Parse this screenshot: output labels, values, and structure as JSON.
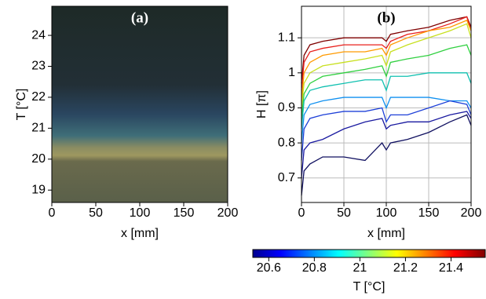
{
  "chart_data": [
    {
      "type": "image",
      "panel_label": "(a)",
      "xlabel": "x [mm]",
      "ylabel": "T [°C]",
      "xlim": [
        0,
        200
      ],
      "xticks": [
        0,
        50,
        100,
        150,
        200
      ],
      "ylim": [
        18.6,
        24.94
      ],
      "yticks": [
        19,
        20,
        21,
        22,
        23,
        24
      ]
    },
    {
      "type": "line",
      "panel_label": "(b)",
      "xlabel": "x [mm]",
      "ylabel": "H [π]",
      "xlim": [
        0,
        200
      ],
      "xticks": [
        0,
        50,
        100,
        150,
        200
      ],
      "ylim": [
        0.63,
        1.19
      ],
      "yticks": [
        0.7,
        0.8,
        0.9,
        1.0,
        1.1
      ],
      "grid": true,
      "x": [
        0,
        3,
        10,
        25,
        50,
        75,
        95,
        100,
        105,
        125,
        150,
        175,
        195,
        200
      ],
      "series": [
        {
          "color": "#7f0000",
          "values": [
            0.97,
            1.05,
            1.08,
            1.09,
            1.1,
            1.1,
            1.1,
            1.09,
            1.11,
            1.12,
            1.13,
            1.15,
            1.16,
            1.13
          ]
        },
        {
          "color": "#e8201c",
          "values": [
            0.95,
            1.03,
            1.06,
            1.07,
            1.08,
            1.08,
            1.08,
            1.07,
            1.09,
            1.11,
            1.12,
            1.14,
            1.16,
            1.12
          ]
        },
        {
          "color": "#ff9a00",
          "values": [
            0.92,
            1.0,
            1.03,
            1.05,
            1.06,
            1.06,
            1.07,
            1.05,
            1.08,
            1.1,
            1.12,
            1.13,
            1.15,
            1.12
          ]
        },
        {
          "color": "#c8e020",
          "values": [
            0.9,
            0.97,
            1.0,
            1.02,
            1.03,
            1.04,
            1.05,
            1.02,
            1.06,
            1.08,
            1.1,
            1.12,
            1.14,
            1.1
          ]
        },
        {
          "color": "#30d040",
          "values": [
            0.87,
            0.94,
            0.97,
            0.99,
            1.0,
            1.01,
            1.02,
            0.99,
            1.03,
            1.04,
            1.05,
            1.07,
            1.08,
            1.05
          ]
        },
        {
          "color": "#10c0b0",
          "values": [
            0.84,
            0.92,
            0.95,
            0.96,
            0.97,
            0.98,
            0.98,
            0.95,
            0.99,
            0.99,
            1.0,
            1.0,
            1.0,
            0.97
          ]
        },
        {
          "color": "#1090f0",
          "values": [
            0.8,
            0.88,
            0.91,
            0.92,
            0.93,
            0.93,
            0.93,
            0.9,
            0.93,
            0.93,
            0.93,
            0.92,
            0.92,
            0.9
          ]
        },
        {
          "color": "#1e40d8",
          "values": [
            0.75,
            0.84,
            0.87,
            0.88,
            0.89,
            0.89,
            0.9,
            0.86,
            0.88,
            0.88,
            0.9,
            0.92,
            0.91,
            0.88
          ]
        },
        {
          "color": "#1a1aa0",
          "values": [
            0.7,
            0.78,
            0.8,
            0.81,
            0.84,
            0.86,
            0.87,
            0.84,
            0.85,
            0.86,
            0.86,
            0.88,
            0.89,
            0.87
          ]
        },
        {
          "color": "#101060",
          "values": [
            0.65,
            0.72,
            0.74,
            0.76,
            0.76,
            0.75,
            0.8,
            0.78,
            0.8,
            0.81,
            0.83,
            0.86,
            0.88,
            0.85
          ]
        }
      ]
    },
    {
      "type": "colorbar",
      "xlabel": "T [°C]",
      "xlim": [
        20.53,
        21.55
      ],
      "xticks": [
        20.6,
        20.8,
        21.0,
        21.2,
        21.4
      ]
    }
  ]
}
